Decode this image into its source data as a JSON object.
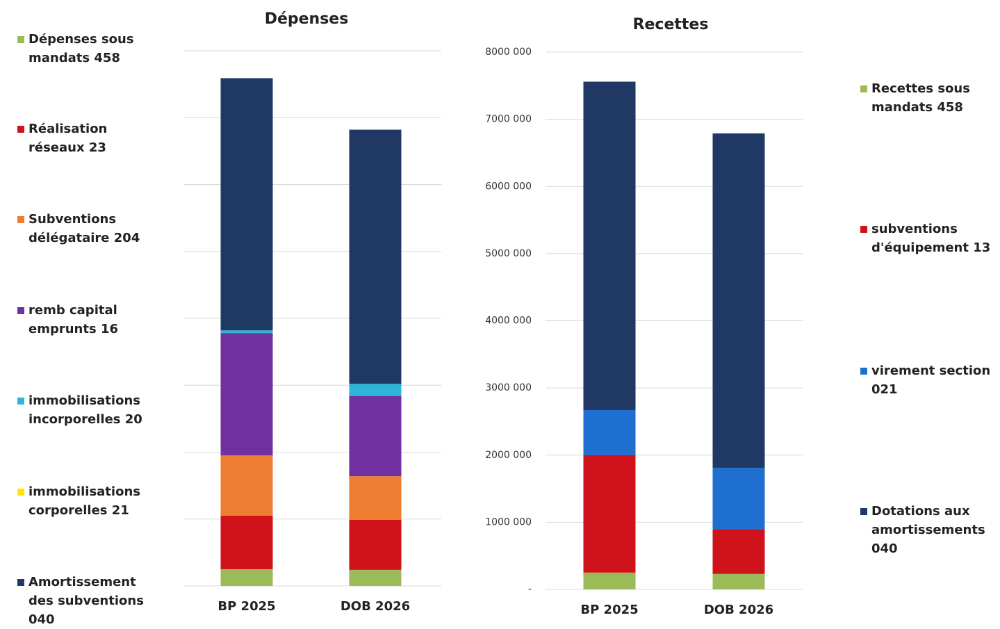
{
  "chart_data": [
    {
      "type": "bar",
      "stacked": true,
      "title": "Dépenses",
      "categories": [
        "BP 2025",
        "DOB 2026"
      ],
      "ylim": [
        0,
        8000000
      ],
      "yticks": [
        0,
        1000000,
        2000000,
        3000000,
        4000000,
        5000000,
        6000000,
        7000000,
        8000000
      ],
      "show_tick_labels": false,
      "grid": true,
      "legend": "left",
      "series": [
        {
          "name": "Dépenses sous mandats 458",
          "color": "#9bbb59",
          "values": [
            250000,
            240000
          ]
        },
        {
          "name": "Réalisation réseaux 23",
          "color": "#d0121b",
          "values": [
            800000,
            750000
          ]
        },
        {
          "name": "Subventions délégataire 204",
          "color": "#ed7d31",
          "values": [
            900000,
            650000
          ]
        },
        {
          "name": "remb capital emprunts 16",
          "color": "#7030a0",
          "values": [
            1830000,
            1200000
          ]
        },
        {
          "name": "immobilisations incorporelles 20",
          "color": "#2bb6d8",
          "values": [
            40000,
            180000
          ]
        },
        {
          "name": "immobilisations corporelles 21",
          "color": "#ffe600",
          "values": [
            0,
            0
          ]
        },
        {
          "name": "Amortissement des subventions 040",
          "color": "#1f3864",
          "values": [
            3770000,
            3800000
          ]
        }
      ]
    },
    {
      "type": "bar",
      "stacked": true,
      "title": "Recettes",
      "categories": [
        "BP 2025",
        "DOB 2026"
      ],
      "ylim": [
        0,
        8000000
      ],
      "yticks": [
        {
          "value": 0,
          "label": "-"
        },
        {
          "value": 1000000,
          "label": "1000 000"
        },
        {
          "value": 2000000,
          "label": "2000 000"
        },
        {
          "value": 3000000,
          "label": "3000 000"
        },
        {
          "value": 4000000,
          "label": "4000 000"
        },
        {
          "value": 5000000,
          "label": "5000 000"
        },
        {
          "value": 6000000,
          "label": "6000 000"
        },
        {
          "value": 7000000,
          "label": "7000 000"
        },
        {
          "value": 8000000,
          "label": "8000 000"
        }
      ],
      "show_tick_labels": true,
      "grid": true,
      "legend": "right",
      "series": [
        {
          "name": "Recettes sous mandats 458",
          "color": "#9bbb59",
          "values": [
            250000,
            230000
          ]
        },
        {
          "name": "subventions d'équipement 13",
          "color": "#d0121b",
          "values": [
            1750000,
            660000
          ]
        },
        {
          "name": "virement section 021",
          "color": "#1f6fd1",
          "values": [
            670000,
            920000
          ]
        },
        {
          "name": "Dotations aux amortissements 040",
          "color": "#1f3864",
          "values": [
            4890000,
            4980000
          ]
        }
      ]
    }
  ]
}
